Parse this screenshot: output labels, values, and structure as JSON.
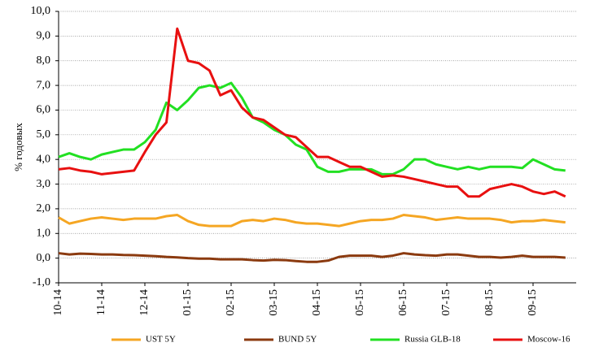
{
  "chart_data": {
    "type": "line",
    "ylabel": "% годовых",
    "categories": [
      "10-14",
      null,
      null,
      null,
      "11-14",
      null,
      null,
      null,
      "12-14",
      null,
      null,
      null,
      "01-15",
      null,
      null,
      null,
      "02-15",
      null,
      null,
      null,
      "03-15",
      null,
      null,
      null,
      "04-15",
      null,
      null,
      null,
      "05-15",
      null,
      null,
      null,
      "06-15",
      null,
      null,
      null,
      "07-15",
      null,
      null,
      null,
      "08-15",
      null,
      null,
      null,
      "09-15",
      null,
      null,
      null
    ],
    "series": [
      {
        "name": "UST 5Y",
        "color": "#f5a623",
        "values": [
          1.65,
          1.4,
          1.5,
          1.6,
          1.65,
          1.6,
          1.55,
          1.6,
          1.6,
          1.6,
          1.7,
          1.75,
          1.5,
          1.35,
          1.3,
          1.3,
          1.3,
          1.5,
          1.55,
          1.5,
          1.6,
          1.55,
          1.45,
          1.4,
          1.4,
          1.35,
          1.3,
          1.4,
          1.5,
          1.55,
          1.55,
          1.6,
          1.75,
          1.7,
          1.65,
          1.55,
          1.6,
          1.65,
          1.6,
          1.6,
          1.6,
          1.55,
          1.45,
          1.5,
          1.5,
          1.55,
          1.5,
          1.45
        ]
      },
      {
        "name": "BUND 5Y",
        "color": "#8b3a0f",
        "values": [
          0.2,
          0.15,
          0.18,
          0.17,
          0.15,
          0.15,
          0.13,
          0.12,
          0.1,
          0.08,
          0.05,
          0.03,
          0,
          -0.02,
          -0.02,
          -0.05,
          -0.05,
          -0.05,
          -0.08,
          -0.1,
          -0.07,
          -0.08,
          -0.12,
          -0.15,
          -0.15,
          -0.1,
          0.05,
          0.1,
          0.1,
          0.1,
          0.05,
          0.1,
          0.2,
          0.15,
          0.12,
          0.1,
          0.15,
          0.15,
          0.1,
          0.05,
          0.05,
          0.02,
          0.05,
          0.1,
          0.05,
          0.05,
          0.05,
          0.02
        ]
      },
      {
        "name": "Russia GLB-18",
        "color": "#22e022",
        "values": [
          4.1,
          4.25,
          4.1,
          4.0,
          4.2,
          4.3,
          4.4,
          4.4,
          4.7,
          5.2,
          6.3,
          6.0,
          6.4,
          6.9,
          7.0,
          6.9,
          7.1,
          6.5,
          5.7,
          5.5,
          5.2,
          5.0,
          4.6,
          4.4,
          3.7,
          3.5,
          3.5,
          3.6,
          3.6,
          3.6,
          3.4,
          3.4,
          3.6,
          4.0,
          4.0,
          3.8,
          3.7,
          3.6,
          3.7,
          3.6,
          3.7,
          3.7,
          3.7,
          3.65,
          4.0,
          3.8,
          3.6,
          3.55
        ]
      },
      {
        "name": "Moscow-16",
        "color": "#e81010",
        "values": [
          3.6,
          3.65,
          3.55,
          3.5,
          3.4,
          3.45,
          3.5,
          3.55,
          4.3,
          5.0,
          5.5,
          9.3,
          8.0,
          7.9,
          7.6,
          6.6,
          6.8,
          6.1,
          5.7,
          5.6,
          5.3,
          5.0,
          4.9,
          4.5,
          4.1,
          4.1,
          3.9,
          3.7,
          3.7,
          3.5,
          3.3,
          3.35,
          3.3,
          3.2,
          3.1,
          3.0,
          2.9,
          2.9,
          2.5,
          2.5,
          2.8,
          2.9,
          3.0,
          2.9,
          2.7,
          2.6,
          2.7,
          2.5
        ]
      }
    ],
    "ylim": [
      -1,
      10
    ],
    "yticks": [
      {
        "value": -1,
        "label": "-1,0"
      },
      {
        "value": 0,
        "label": "0,0"
      },
      {
        "value": 1,
        "label": "1,0"
      },
      {
        "value": 2,
        "label": "2,0"
      },
      {
        "value": 3,
        "label": "3,0"
      },
      {
        "value": 4,
        "label": "4,0"
      },
      {
        "value": 5,
        "label": "5,0"
      },
      {
        "value": 6,
        "label": "6,0"
      },
      {
        "value": 7,
        "label": "7,0"
      },
      {
        "value": 8,
        "label": "8,0"
      },
      {
        "value": 9,
        "label": "9,0"
      },
      {
        "value": 10,
        "label": "10,0"
      }
    ],
    "grid": true
  }
}
